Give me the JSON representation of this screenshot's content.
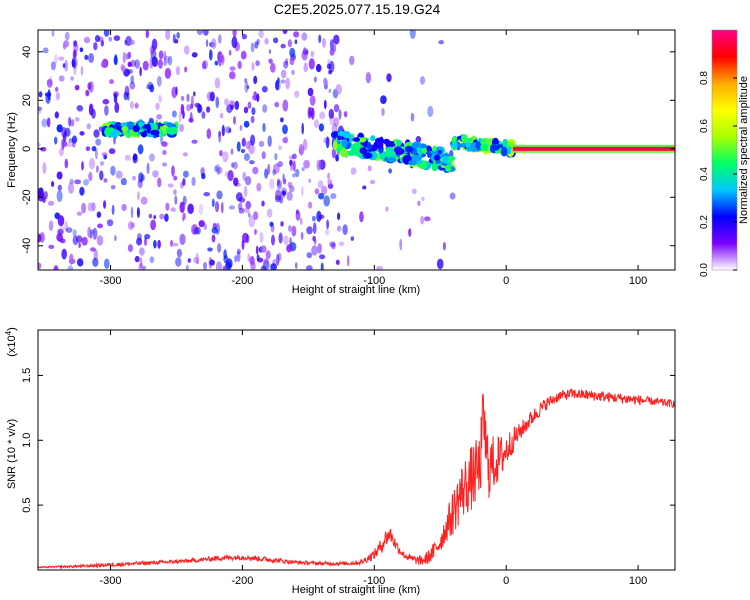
{
  "figure_title": "C2E5.2025.077.15.19.G24",
  "chart_data": [
    {
      "type": "heatmap",
      "title": "",
      "xlabel": "Height of straight line (km)",
      "ylabel": "Frequency (Hz)",
      "xlim": [
        -355,
        128
      ],
      "ylim": [
        -50,
        49
      ],
      "xticks": [
        -300,
        -200,
        -100,
        0,
        100
      ],
      "yticks": [
        -40,
        -20,
        0,
        20,
        40
      ],
      "colorbar": {
        "label": "Normalized spectral amplitude",
        "range": [
          0,
          1
        ],
        "ticks": [
          "0.0",
          "0.2",
          "0.4",
          "0.6",
          "0.8"
        ],
        "tick_values": [
          0.0,
          0.2,
          0.4,
          0.6,
          0.8
        ],
        "colors": [
          "#ffffff",
          "#7a00ff",
          "#0000ff",
          "#00c8ff",
          "#00ff66",
          "#aaff00",
          "#ffff00",
          "#ffaa00",
          "#ff0000",
          "#ff0088"
        ]
      },
      "features": [
        {
          "kind": "noise",
          "x_range": [
            -355,
            -122
          ],
          "y_range": [
            -50,
            49
          ],
          "amplitude": 0.25
        },
        {
          "kind": "noise",
          "x_range": [
            -122,
            -38
          ],
          "y_range": [
            -50,
            49
          ],
          "amplitude": 0.04
        },
        {
          "kind": "blob_band",
          "x_range": [
            -305,
            -250
          ],
          "y_center": [
            8,
            8
          ],
          "y_width": 4,
          "amplitude": 0.45
        },
        {
          "kind": "blob_band",
          "x_range": [
            -130,
            -40
          ],
          "y_center": [
            3,
            -5
          ],
          "y_width": 8,
          "amplitude": 0.45
        },
        {
          "kind": "blob_band",
          "x_range": [
            -40,
            5
          ],
          "y_center": [
            3,
            0
          ],
          "y_width": 4,
          "amplitude": 0.5
        },
        {
          "kind": "line",
          "x_range": [
            5,
            128
          ],
          "y": 0,
          "amplitude": 0.95
        }
      ]
    },
    {
      "type": "line",
      "title": "",
      "xlabel": "Height of straight line (km)",
      "ylabel": "SNR (10 * v/v)",
      "y_multiplier": "(x10",
      "y_multiplier_exp": "4",
      "y_multiplier_close": ")",
      "xlim": [
        -355,
        128
      ],
      "ylim": [
        0,
        1.85
      ],
      "xticks": [
        -300,
        -200,
        -100,
        0,
        100
      ],
      "yticks": [
        "0.5",
        "1.0",
        "1.5"
      ],
      "ytick_values": [
        0.5,
        1.0,
        1.5
      ],
      "series": [
        {
          "color": "#ff2020",
          "x": [
            -355,
            -320,
            -300,
            -280,
            -260,
            -240,
            -220,
            -200,
            -180,
            -160,
            -140,
            -120,
            -110,
            -100,
            -95,
            -92,
            -88,
            -85,
            -82,
            -78,
            -75,
            -70,
            -65,
            -60,
            -55,
            -50,
            -45,
            -40,
            -35,
            -30,
            -25,
            -20,
            -17,
            -15,
            -12,
            -10,
            -5,
            0,
            5,
            10,
            20,
            30,
            40,
            50,
            60,
            70,
            80,
            90,
            100,
            110,
            120,
            128
          ],
          "y": [
            0.02,
            0.03,
            0.04,
            0.05,
            0.06,
            0.07,
            0.09,
            0.1,
            0.08,
            0.06,
            0.05,
            0.05,
            0.06,
            0.12,
            0.18,
            0.24,
            0.28,
            0.22,
            0.17,
            0.12,
            0.1,
            0.08,
            0.07,
            0.09,
            0.14,
            0.22,
            0.34,
            0.45,
            0.58,
            0.66,
            0.72,
            0.78,
            1.2,
            0.85,
            0.8,
            0.82,
            0.86,
            0.92,
            1.0,
            1.06,
            1.18,
            1.28,
            1.34,
            1.36,
            1.35,
            1.34,
            1.33,
            1.32,
            1.31,
            1.3,
            1.29,
            1.28
          ],
          "noise": [
            0.005,
            0.01,
            0.015,
            0.015,
            0.015,
            0.015,
            0.02,
            0.02,
            0.02,
            0.015,
            0.015,
            0.015,
            0.02,
            0.04,
            0.06,
            0.07,
            0.06,
            0.05,
            0.04,
            0.03,
            0.03,
            0.03,
            0.04,
            0.05,
            0.07,
            0.09,
            0.12,
            0.18,
            0.22,
            0.24,
            0.26,
            0.26,
            0.3,
            0.3,
            0.26,
            0.22,
            0.18,
            0.14,
            0.1,
            0.07,
            0.06,
            0.05,
            0.04,
            0.04,
            0.04,
            0.04,
            0.04,
            0.04,
            0.04,
            0.03,
            0.03,
            0.03
          ]
        }
      ]
    }
  ]
}
